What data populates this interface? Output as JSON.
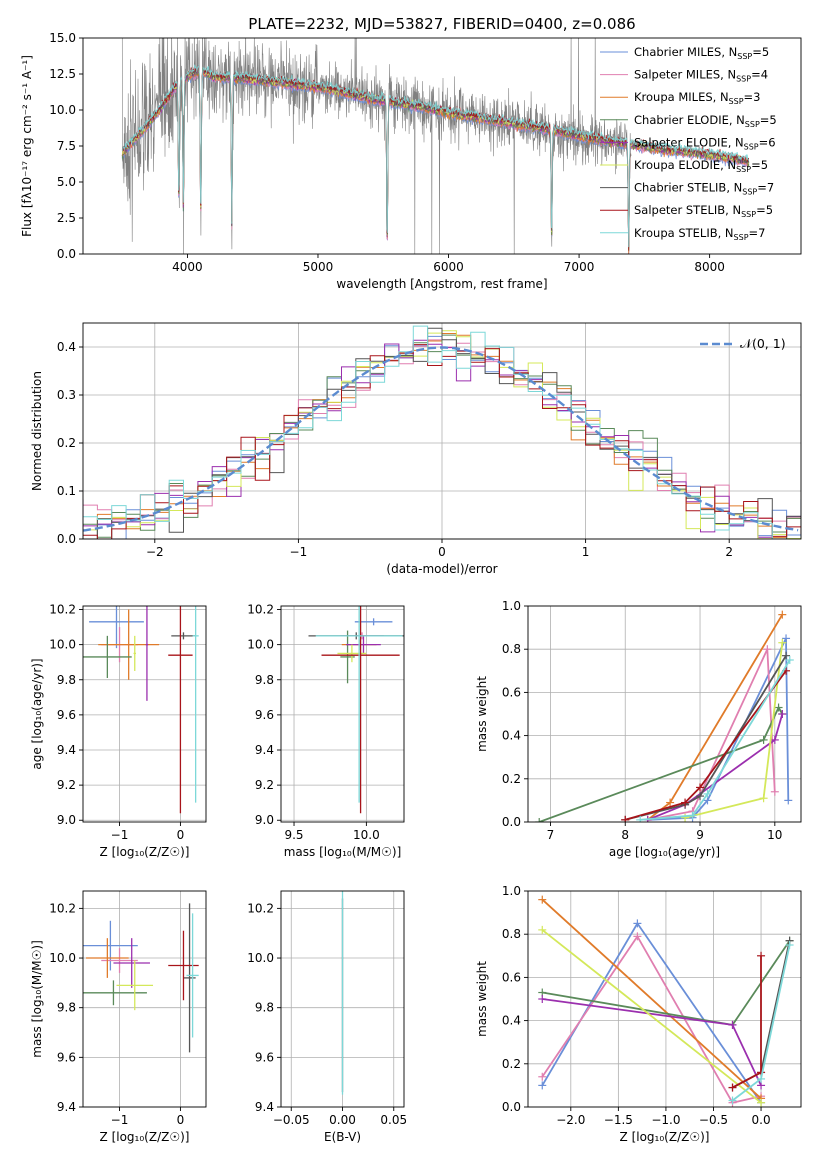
{
  "colors": {
    "chabrier_miles": "#6a8fd8",
    "salpeter_miles": "#e07fb0",
    "kroupa_miles": "#e07b2a",
    "chabrier_elodie": "#5a8a5a",
    "salpeter_elodie": "#9b2fae",
    "kroupa_elodie": "#d4e85a",
    "chabrier_stelib": "#555555",
    "salpeter_stelib": "#a8141a",
    "kroupa_stelib": "#7dd8d8",
    "grid": "#b0b0b0",
    "data_spectrum": "#808080",
    "gaussian": "#5b8bd0"
  },
  "chart_data": [
    {
      "id": "spectrum",
      "type": "line",
      "title": "PLATE=2232, MJD=53827, FIBERID=0400, z=0.086",
      "xlabel": "wavelength [Angstrom, rest frame]",
      "ylabel": "Flux [fλ10⁻¹⁷ erg cm⁻² s⁻¹ A⁻¹]",
      "xlim": [
        3200,
        8700
      ],
      "ylim": [
        0,
        15
      ],
      "xticks": [
        "4000",
        "5000",
        "6000",
        "7000",
        "8000"
      ],
      "yticks": [
        "0.0",
        "2.5",
        "5.0",
        "7.5",
        "10.0",
        "12.5",
        "15.0"
      ],
      "grid": false,
      "legend_position": "top-right",
      "legend": [
        {
          "label": "Chabrier MILES, N",
          "sub": "SSP",
          "tail": "=5",
          "color": "chabrier_miles"
        },
        {
          "label": "Salpeter MILES, N",
          "sub": "SSP",
          "tail": "=4",
          "color": "salpeter_miles"
        },
        {
          "label": "Kroupa MILES, N",
          "sub": "SSP",
          "tail": "=3",
          "color": "kroupa_miles"
        },
        {
          "label": "Chabrier ELODIE, N",
          "sub": "SSP",
          "tail": "=5",
          "color": "chabrier_elodie"
        },
        {
          "label": "Salpeter ELODIE, N",
          "sub": "SSP",
          "tail": "=6",
          "color": "salpeter_elodie"
        },
        {
          "label": "Kroupa ELODIE, N",
          "sub": "SSP",
          "tail": "=5",
          "color": "kroupa_elodie"
        },
        {
          "label": "Chabrier STELIB, N",
          "sub": "SSP",
          "tail": "=7",
          "color": "chabrier_stelib"
        },
        {
          "label": "Salpeter STELIB, N",
          "sub": "SSP",
          "tail": "=5",
          "color": "salpeter_stelib"
        },
        {
          "label": "Kroupa STELIB, N",
          "sub": "SSP",
          "tail": "=7",
          "color": "kroupa_stelib"
        }
      ],
      "model_curve": {
        "x": [
          3500,
          3600,
          3700,
          3800,
          3900,
          4000,
          4100,
          4200,
          4400,
          4600,
          4800,
          5000,
          5200,
          5400,
          5600,
          5800,
          6000,
          6200,
          6400,
          6600,
          6800,
          7000,
          7200,
          7400,
          7600,
          7800,
          8000,
          8200,
          8300
        ],
        "y": [
          7.0,
          8.0,
          9.0,
          10.2,
          11.5,
          12.3,
          12.8,
          12.3,
          12.2,
          12.0,
          11.8,
          11.6,
          11.2,
          10.8,
          10.5,
          10.2,
          9.8,
          9.5,
          9.2,
          8.9,
          8.6,
          8.2,
          7.9,
          7.6,
          7.3,
          7.1,
          6.9,
          6.6,
          6.4
        ]
      },
      "data_extent": [
        3500,
        7400
      ],
      "absorption_dips": [
        {
          "x": 3934,
          "depth": 3.5
        },
        {
          "x": 3969,
          "depth": 3.0
        },
        {
          "x": 4102,
          "depth": 2.0
        },
        {
          "x": 4340,
          "depth": 2.0
        },
        {
          "x": 5530,
          "depth": 0.3
        },
        {
          "x": 6790,
          "depth": 1.0
        },
        {
          "x": 7380,
          "depth": 0.3
        }
      ]
    },
    {
      "id": "residuals",
      "type": "line",
      "xlabel": "(data-model)/error",
      "ylabel": "Normed distribution",
      "xlim": [
        -2.5,
        2.5
      ],
      "ylim": [
        0,
        0.45
      ],
      "xticks": [
        "−2",
        "−1",
        "0",
        "1",
        "2"
      ],
      "yticks": [
        "0.0",
        "0.1",
        "0.2",
        "0.3",
        "0.4"
      ],
      "grid": true,
      "legend_position": "top-right",
      "legend": [
        {
          "label": "𝒩(0, 1)",
          "color": "gaussian",
          "style": "dashed"
        }
      ],
      "bin_width": 0.1,
      "histogram_series_count": 9
    },
    {
      "id": "age-vs-Z",
      "type": "scatter",
      "xlabel": "Z [log₁₀(Z/Z☉)]",
      "ylabel": "age  [log₁₀(age/yr)]",
      "xlim": [
        -1.6,
        0.42
      ],
      "ylim": [
        8.99,
        10.22
      ],
      "xticks": [
        "−1",
        "0"
      ],
      "yticks": [
        "9.0",
        "9.2",
        "9.4",
        "9.6",
        "9.8",
        "10.0",
        "10.2"
      ],
      "grid": true,
      "points": [
        {
          "color": "chabrier_miles",
          "x": -1.05,
          "xerr": 0.45,
          "y": 10.13,
          "yerr": 0.15
        },
        {
          "color": "salpeter_miles",
          "x": -1.0,
          "xerr": 0.3,
          "y": 10.0,
          "yerr": 0.1
        },
        {
          "color": "kroupa_miles",
          "x": -0.85,
          "xerr": 0.5,
          "y": 10.0,
          "yerr": 0.2
        },
        {
          "color": "chabrier_elodie",
          "x": -1.2,
          "xerr": 0.4,
          "y": 9.93,
          "yerr": 0.12
        },
        {
          "color": "salpeter_elodie",
          "x": -0.55,
          "xerr": 0.02,
          "y": 10.0,
          "yerr": 0.32
        },
        {
          "color": "kroupa_elodie",
          "x": -0.75,
          "xerr": 0.02,
          "y": 9.95,
          "yerr": 0.1
        },
        {
          "color": "chabrier_stelib",
          "x": 0.05,
          "xerr": 0.2,
          "y": 10.05,
          "yerr": 0.02
        },
        {
          "color": "salpeter_stelib",
          "x": 0.0,
          "xerr": 0.2,
          "y": 9.94,
          "yerr": 0.9
        },
        {
          "color": "kroupa_stelib",
          "x": 0.25,
          "xerr": 0.05,
          "y": 10.05,
          "yerr": 0.95
        }
      ]
    },
    {
      "id": "age-vs-mass",
      "type": "scatter",
      "xlabel": "mass [log₁₀(M/M☉)]",
      "ylabel": "",
      "xlim": [
        9.41,
        10.26
      ],
      "ylim": [
        8.99,
        10.22
      ],
      "xticks": [
        "9.5",
        "10.0"
      ],
      "yticks": [
        "9.0",
        "9.2",
        "9.4",
        "9.6",
        "9.8",
        "10.0",
        "10.2"
      ],
      "grid": true,
      "points": [
        {
          "color": "chabrier_miles",
          "x": 10.05,
          "xerr": 0.13,
          "y": 10.13,
          "yerr": 0.02
        },
        {
          "color": "salpeter_miles",
          "x": 9.97,
          "xerr": 0.15,
          "y": 10.05,
          "yerr": 0.02
        },
        {
          "color": "kroupa_miles",
          "x": 9.95,
          "xerr": 0.12,
          "y": 10.0,
          "yerr": 0.03
        },
        {
          "color": "chabrier_elodie",
          "x": 9.87,
          "xerr": 0.05,
          "y": 9.93,
          "yerr": 0.15
        },
        {
          "color": "salpeter_elodie",
          "x": 9.98,
          "xerr": 0.12,
          "y": 10.0,
          "yerr": 0.05
        },
        {
          "color": "kroupa_elodie",
          "x": 9.9,
          "xerr": 0.1,
          "y": 9.95,
          "yerr": 0.05
        },
        {
          "color": "chabrier_stelib",
          "x": 9.93,
          "xerr": 0.33,
          "y": 10.05,
          "yerr": 0.02
        },
        {
          "color": "salpeter_stelib",
          "x": 9.96,
          "xerr": 0.27,
          "y": 9.94,
          "yerr": 0.9
        },
        {
          "color": "kroupa_stelib",
          "x": 9.95,
          "xerr": 0.3,
          "y": 10.05,
          "yerr": 0.95
        }
      ]
    },
    {
      "id": "massweight-vs-age",
      "type": "line",
      "xlabel": "age  [log₁₀(age/yr)]",
      "ylabel": "mass weight",
      "xlim": [
        6.7,
        10.35
      ],
      "ylim": [
        0,
        1.0
      ],
      "xticks": [
        "7",
        "8",
        "9",
        "10"
      ],
      "yticks": [
        "0.0",
        "0.2",
        "0.4",
        "0.6",
        "0.8",
        "1.0"
      ],
      "grid": true,
      "series": [
        {
          "color": "chabrier_miles",
          "x": [
            8.3,
            8.9,
            9.1,
            10.15,
            10.18
          ],
          "y": [
            0.01,
            0.02,
            0.1,
            0.85,
            0.1
          ]
        },
        {
          "color": "salpeter_miles",
          "x": [
            8.3,
            8.9,
            9.9,
            10.0
          ],
          "y": [
            0.01,
            0.05,
            0.8,
            0.14
          ]
        },
        {
          "color": "kroupa_miles",
          "x": [
            8.3,
            8.6,
            10.1
          ],
          "y": [
            0.01,
            0.09,
            0.96
          ]
        },
        {
          "color": "chabrier_elodie",
          "x": [
            6.85,
            9.85,
            10.05,
            10.1
          ],
          "y": [
            0.0,
            0.38,
            0.53,
            0.5
          ]
        },
        {
          "color": "salpeter_elodie",
          "x": [
            8.3,
            8.8,
            10.0,
            10.1
          ],
          "y": [
            0.01,
            0.08,
            0.38,
            0.5
          ]
        },
        {
          "color": "kroupa_elodie",
          "x": [
            8.8,
            9.85,
            10.1
          ],
          "y": [
            0.02,
            0.11,
            0.83
          ]
        },
        {
          "color": "chabrier_stelib",
          "x": [
            8.0,
            8.8,
            9.0,
            10.15
          ],
          "y": [
            0.01,
            0.08,
            0.12,
            0.77
          ]
        },
        {
          "color": "salpeter_stelib",
          "x": [
            8.0,
            8.8,
            9.0,
            10.15
          ],
          "y": [
            0.01,
            0.09,
            0.16,
            0.7
          ]
        },
        {
          "color": "kroupa_stelib",
          "x": [
            8.2,
            8.9,
            9.1,
            10.2
          ],
          "y": [
            0.01,
            0.03,
            0.13,
            0.75
          ]
        }
      ]
    },
    {
      "id": "mass-vs-Z",
      "type": "scatter",
      "xlabel": "Z [log₁₀(Z/Z☉)]",
      "ylabel": "mass [log₁₀(M/M☉)]",
      "xlim": [
        -1.6,
        0.42
      ],
      "ylim": [
        9.4,
        10.27
      ],
      "xticks": [
        "−1",
        "0"
      ],
      "yticks": [
        "9.4",
        "9.6",
        "9.8",
        "10.0",
        "10.2"
      ],
      "grid": true,
      "points": [
        {
          "color": "chabrier_miles",
          "x": -1.15,
          "xerr": 0.45,
          "y": 10.05,
          "yerr": 0.1
        },
        {
          "color": "salpeter_miles",
          "x": -1.0,
          "xerr": 0.3,
          "y": 9.99,
          "yerr": 0.05
        },
        {
          "color": "kroupa_miles",
          "x": -1.2,
          "xerr": 0.35,
          "y": 10.0,
          "yerr": 0.08
        },
        {
          "color": "chabrier_elodie",
          "x": -1.1,
          "xerr": 0.55,
          "y": 9.86,
          "yerr": 0.05
        },
        {
          "color": "salpeter_elodie",
          "x": -0.8,
          "xerr": 0.3,
          "y": 9.98,
          "yerr": 0.1
        },
        {
          "color": "kroupa_elodie",
          "x": -0.75,
          "xerr": 0.3,
          "y": 9.89,
          "yerr": 0.1
        },
        {
          "color": "chabrier_stelib",
          "x": 0.15,
          "xerr": 0.1,
          "y": 9.92,
          "yerr": 0.3
        },
        {
          "color": "salpeter_stelib",
          "x": 0.05,
          "xerr": 0.25,
          "y": 9.97,
          "yerr": 0.14
        },
        {
          "color": "kroupa_stelib",
          "x": 0.2,
          "xerr": 0.1,
          "y": 9.93,
          "yerr": 0.25
        }
      ]
    },
    {
      "id": "mass-vs-EBV",
      "type": "scatter",
      "xlabel": "E(B-V)",
      "ylabel": "",
      "xlim": [
        -0.06,
        0.06
      ],
      "ylim": [
        9.4,
        10.27
      ],
      "xticks": [
        "−0.05",
        "0.00",
        "0.05"
      ],
      "yticks": [
        "9.4",
        "9.6",
        "9.8",
        "10.0",
        "10.2"
      ],
      "grid": true,
      "points": [
        {
          "color": "chabrier_stelib",
          "x": 0.0,
          "xerr": 0.0,
          "y": 9.85,
          "yerr": 0.39
        },
        {
          "color": "kroupa_stelib",
          "x": 0.0,
          "xerr": 0.0,
          "y": 9.9,
          "yerr": 0.45
        }
      ]
    },
    {
      "id": "massweight-vs-Z",
      "type": "line",
      "xlabel": "Z [log₁₀(Z/Z☉)]",
      "ylabel": "mass weight",
      "xlim": [
        -2.45,
        0.42
      ],
      "ylim": [
        0,
        1.0
      ],
      "xticks": [
        "−2.0",
        "−1.5",
        "−1.0",
        "−0.5",
        "0.0"
      ],
      "yticks": [
        "0.0",
        "0.2",
        "0.4",
        "0.6",
        "0.8",
        "1.0"
      ],
      "grid": true,
      "series": [
        {
          "color": "chabrier_miles",
          "x": [
            -2.3,
            -1.3,
            0.0
          ],
          "y": [
            0.1,
            0.85,
            0.02
          ]
        },
        {
          "color": "salpeter_miles",
          "x": [
            -2.3,
            -1.3,
            -0.3,
            0.0
          ],
          "y": [
            0.14,
            0.79,
            0.02,
            0.05
          ]
        },
        {
          "color": "kroupa_miles",
          "x": [
            -2.3,
            0.0
          ],
          "y": [
            0.96,
            0.04
          ]
        },
        {
          "color": "chabrier_elodie",
          "x": [
            -2.3,
            -0.3,
            0.3
          ],
          "y": [
            0.53,
            0.38,
            0.77
          ]
        },
        {
          "color": "salpeter_elodie",
          "x": [
            -2.3,
            -0.3,
            0.0
          ],
          "y": [
            0.5,
            0.38,
            0.1
          ]
        },
        {
          "color": "kroupa_elodie",
          "x": [
            -2.3,
            0.0
          ],
          "y": [
            0.82,
            0.02
          ]
        },
        {
          "color": "chabrier_stelib",
          "x": [
            -0.3,
            0.0,
            0.3
          ],
          "y": [
            0.09,
            0.16,
            0.77
          ]
        },
        {
          "color": "salpeter_stelib",
          "x": [
            -0.3,
            0.0,
            0.0
          ],
          "y": [
            0.09,
            0.16,
            0.7
          ]
        },
        {
          "color": "kroupa_stelib",
          "x": [
            -0.3,
            0.0,
            0.3
          ],
          "y": [
            0.03,
            0.13,
            0.75
          ]
        }
      ]
    }
  ]
}
